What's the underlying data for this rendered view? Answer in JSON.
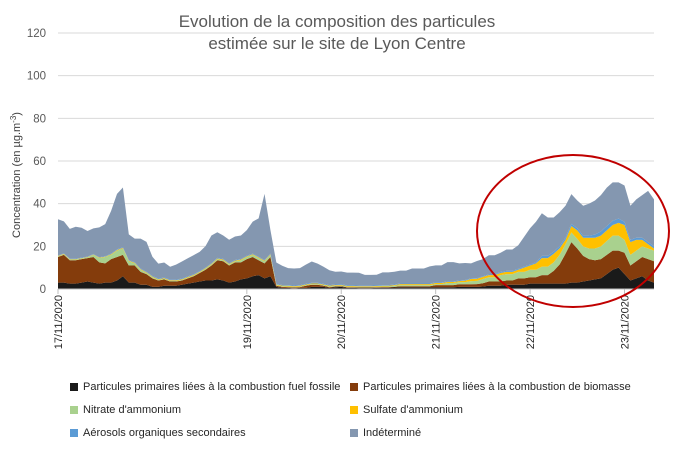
{
  "chart_data": {
    "type": "area",
    "title": "Evolution de la composition des particules",
    "subtitle": "estimée sur le site de Lyon Centre",
    "ylabel": "Concentration (en µg.m",
    "ylabel_sup": "-3",
    "ylabel_close": ")",
    "xlabel": "",
    "ylim": [
      0,
      120
    ],
    "yticks": [
      0,
      20,
      40,
      60,
      80,
      100,
      120
    ],
    "grid": true,
    "legend_position": "bottom",
    "x_start": "17/11/2020",
    "x_end": "23/11/2020",
    "x_step_hours": 1.5,
    "xtick_labels": [
      "17/11/2020",
      "19/11/2020",
      "20/11/2020",
      "21/11/2020",
      "22/11/2020",
      "23/11/2020"
    ],
    "xtick_positions": [
      0,
      32,
      48,
      64,
      80,
      96
    ],
    "annotation": "red ellipse highlighting the 22/11/2020 – 23/11/2020 episode",
    "annotation_color": "#c00000",
    "grid_color": "#d9d9d9",
    "series": [
      {
        "name": "Particules primaires liées à la combustion fuel fossile",
        "color": "#1a1a1a",
        "values": [
          3,
          3,
          2.5,
          2.5,
          3,
          3.5,
          3,
          2.5,
          3,
          3,
          4,
          6,
          3,
          3,
          2,
          2,
          1,
          1,
          1.5,
          1.5,
          1.5,
          2,
          2.5,
          3,
          3.5,
          4,
          4,
          4.5,
          4,
          3,
          3.5,
          4.5,
          5,
          6,
          6.5,
          5,
          6,
          1,
          0.5,
          0.5,
          0.3,
          0.5,
          0.5,
          1,
          1,
          1,
          0.5,
          0.8,
          1,
          0.5,
          0.5,
          0.4,
          0.4,
          0.4,
          0.5,
          0.6,
          0.6,
          0.7,
          0.8,
          0.8,
          0.8,
          0.8,
          0.8,
          0.8,
          0.8,
          0.8,
          0.8,
          0.8,
          1,
          1,
          1,
          1,
          1.2,
          1.5,
          1.5,
          1.5,
          2,
          2,
          2,
          2,
          2.5,
          2.5,
          2.5,
          2.5,
          2.5,
          2.5,
          2.5,
          3,
          3,
          3.5,
          4,
          4.5,
          5,
          7,
          9,
          10,
          7,
          4,
          5,
          6,
          4,
          3
        ]
      },
      {
        "name": "Particules primaires liées à la combustion de biomasse",
        "color": "#843c0c",
        "values": [
          12,
          13,
          11,
          11,
          11,
          11,
          12,
          10,
          9,
          11,
          11,
          10,
          8,
          8,
          6,
          5,
          4,
          3,
          3,
          2,
          2,
          2,
          2.5,
          3,
          4,
          5,
          7,
          9,
          9,
          8,
          9,
          8,
          9,
          9,
          7,
          7,
          9,
          0.5,
          0.5,
          0.4,
          0.4,
          0.4,
          1,
          1,
          1,
          0.5,
          0.4,
          0.4,
          0.3,
          0.3,
          0.3,
          0.3,
          0.3,
          0.3,
          0.3,
          0.3,
          0.3,
          0.3,
          0.5,
          0.5,
          0.5,
          0.5,
          0.5,
          0.5,
          1,
          1,
          1,
          1,
          1.2,
          1.2,
          1.2,
          1.3,
          1.5,
          2,
          2,
          2,
          2,
          2,
          3,
          3,
          3,
          3,
          4,
          4,
          6,
          9,
          14,
          19,
          16,
          12,
          10,
          9,
          9,
          9,
          9,
          8,
          10,
          7,
          8,
          9,
          10,
          10,
          9,
          8
        ]
      },
      {
        "name": "Nitrate d'ammonium",
        "color": "#a9d18e",
        "values": [
          0.3,
          0.3,
          0.3,
          0.3,
          0.3,
          0.3,
          1,
          2,
          3,
          2,
          3,
          3,
          2,
          1,
          1,
          0.5,
          0.5,
          0.3,
          0.3,
          0.3,
          0.3,
          0.3,
          0.3,
          0.3,
          0.3,
          0.5,
          0.5,
          0.5,
          0.5,
          0.5,
          0.5,
          1,
          1,
          1,
          1,
          1,
          1,
          0.3,
          0.3,
          0.3,
          0.3,
          0.3,
          0.3,
          0.3,
          0.3,
          0.3,
          0.3,
          0.3,
          0.3,
          0.3,
          0.3,
          0.3,
          0.3,
          0.3,
          0.3,
          0.3,
          0.3,
          0.5,
          0.5,
          0.5,
          0.5,
          0.5,
          0.5,
          0.5,
          0.5,
          0.5,
          1,
          1,
          1,
          1,
          1.5,
          1.5,
          2,
          2,
          2,
          3,
          3,
          3,
          3,
          3,
          3.5,
          3.5,
          4,
          4,
          4,
          4.5,
          4.5,
          4.5,
          4.5,
          4.5,
          5,
          5.5,
          6,
          6.5,
          7,
          7,
          6,
          5,
          5,
          5,
          5,
          5,
          5,
          5
        ]
      },
      {
        "name": "Sulfate d'ammonium",
        "color": "#ffc000",
        "values": [
          0.2,
          0.2,
          0.2,
          0.2,
          0.2,
          0.2,
          0.2,
          0.2,
          0.2,
          0.3,
          0.3,
          0.3,
          0.3,
          0.3,
          0.3,
          0.3,
          0.3,
          0.3,
          0.3,
          0.3,
          0.3,
          0.3,
          0.3,
          0.3,
          0.3,
          0.3,
          0.3,
          0.3,
          0.3,
          0.3,
          0.3,
          0.3,
          0.3,
          0.3,
          0.3,
          0.3,
          0.3,
          0.3,
          0.3,
          0.3,
          0.3,
          0.3,
          0.3,
          0.3,
          0.3,
          0.3,
          0.3,
          0.3,
          0.3,
          0.3,
          0.3,
          0.3,
          0.3,
          0.3,
          0.3,
          0.3,
          0.3,
          0.3,
          0.5,
          0.5,
          0.5,
          0.5,
          0.5,
          0.5,
          0.5,
          0.5,
          0.5,
          0.5,
          0.5,
          0.7,
          1,
          1,
          1,
          1,
          1,
          1,
          1,
          1,
          1,
          2,
          2,
          3,
          4,
          4,
          4,
          3,
          2,
          3,
          4,
          4,
          5,
          5,
          5,
          5,
          5,
          6,
          7,
          6,
          5,
          3,
          2,
          1,
          1,
          1
        ]
      },
      {
        "name": "Aérosols organiques secondaires",
        "color": "#5b9bd5",
        "values": [
          0.2,
          0.2,
          0.2,
          0.2,
          0.2,
          0.2,
          0.2,
          0.2,
          0.2,
          0.3,
          0.3,
          0.3,
          0.3,
          0.3,
          0.3,
          0.3,
          0.3,
          0.3,
          0.3,
          0.3,
          0.3,
          0.3,
          0.3,
          0.3,
          0.3,
          0.3,
          0.3,
          0.3,
          0.3,
          0.3,
          0.3,
          0.3,
          0.3,
          0.3,
          0.3,
          0.3,
          0.3,
          0.3,
          0.3,
          0.3,
          0.3,
          0.3,
          0.3,
          0.3,
          0.3,
          0.3,
          0.3,
          0.3,
          0.3,
          0.3,
          0.3,
          0.3,
          0.3,
          0.3,
          0.3,
          0.3,
          0.3,
          0.3,
          0.3,
          0.3,
          0.3,
          0.3,
          0.3,
          0.3,
          0.3,
          0.3,
          0.3,
          0.3,
          0.3,
          0.3,
          0.3,
          0.3,
          0.3,
          0.3,
          0.3,
          0.5,
          0.5,
          0.5,
          0.5,
          0.5,
          0.5,
          0.5,
          1,
          1,
          1,
          1,
          1,
          1,
          1,
          1,
          1,
          1.5,
          2,
          2,
          2,
          2,
          1.5,
          1,
          1,
          1,
          1,
          1,
          1,
          1,
          1
        ]
      },
      {
        "name": "Indéterminé",
        "color": "#8497b0",
        "values": [
          17,
          15,
          14,
          15,
          14,
          12,
          12,
          14,
          15,
          20,
          26,
          28,
          12,
          11,
          14,
          14,
          9,
          7,
          7,
          6,
          7,
          8,
          8.5,
          9,
          9,
          10,
          13,
          12,
          11,
          11,
          11,
          11,
          12,
          15,
          18,
          31,
          11,
          10,
          9,
          8,
          8,
          8,
          9,
          10,
          9,
          8,
          7,
          6,
          6,
          6,
          6,
          6,
          5,
          5,
          5,
          6,
          6,
          6,
          6,
          6,
          7,
          7,
          7,
          8,
          8,
          8,
          9,
          9,
          8,
          8,
          7,
          8,
          8,
          9,
          9,
          9,
          10,
          10,
          11,
          14,
          17,
          19,
          20,
          18,
          16,
          16,
          15,
          14,
          13,
          14,
          15,
          16,
          17,
          18,
          18,
          17,
          17,
          16,
          18,
          20,
          24,
          22,
          20,
          18
        ]
      }
    ]
  }
}
